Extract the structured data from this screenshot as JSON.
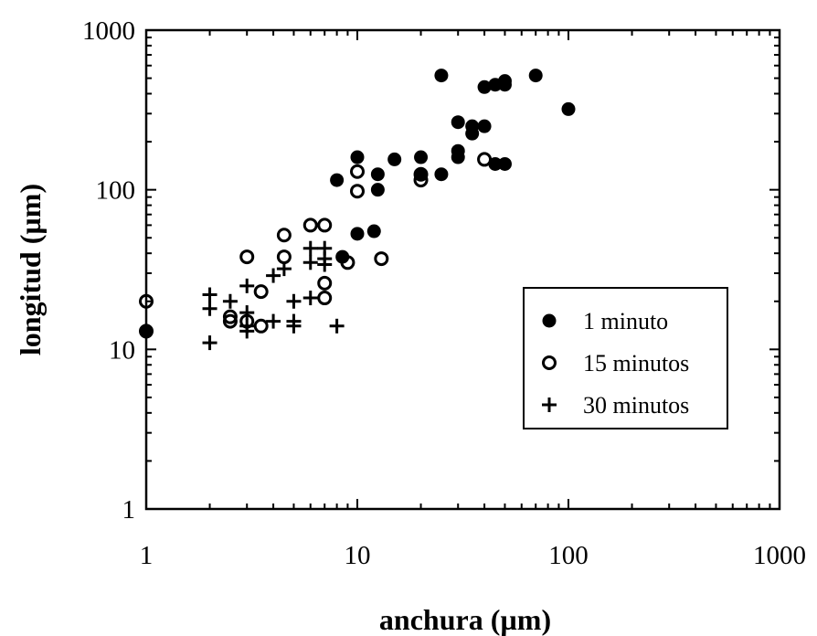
{
  "chart_data": {
    "type": "scatter",
    "xlabel": "anchura (µm)",
    "ylabel": "longitud (µm)",
    "x_scale": "log",
    "y_scale": "log",
    "xlim": [
      1,
      1000
    ],
    "ylim": [
      1,
      1000
    ],
    "x_ticks": [
      "1",
      "10",
      "100",
      "1000"
    ],
    "y_ticks": [
      "1",
      "10",
      "100",
      "1000"
    ],
    "grid": false,
    "legend_position": "inside-right",
    "series": [
      {
        "name": "1 minuto",
        "marker": "filled-circle",
        "points": [
          [
            1,
            13
          ],
          [
            8,
            115
          ],
          [
            8.5,
            38
          ],
          [
            10,
            160
          ],
          [
            10,
            53
          ],
          [
            12,
            55
          ],
          [
            12.5,
            125
          ],
          [
            12.5,
            100
          ],
          [
            15,
            155
          ],
          [
            20,
            160
          ],
          [
            20,
            125
          ],
          [
            25,
            520
          ],
          [
            25,
            125
          ],
          [
            30,
            265
          ],
          [
            30,
            175
          ],
          [
            30,
            160
          ],
          [
            35,
            250
          ],
          [
            35,
            225
          ],
          [
            40,
            440
          ],
          [
            40,
            250
          ],
          [
            45,
            455
          ],
          [
            45,
            145
          ],
          [
            50,
            480
          ],
          [
            50,
            455
          ],
          [
            50,
            145
          ],
          [
            70,
            520
          ],
          [
            100,
            320
          ]
        ]
      },
      {
        "name": "15 minutos",
        "marker": "open-circle",
        "points": [
          [
            1,
            20
          ],
          [
            1,
            13
          ],
          [
            2.5,
            16
          ],
          [
            2.5,
            15
          ],
          [
            3,
            38
          ],
          [
            3,
            15
          ],
          [
            3.5,
            14
          ],
          [
            3.5,
            23
          ],
          [
            4.5,
            38
          ],
          [
            4.5,
            52
          ],
          [
            6,
            60
          ],
          [
            7,
            60
          ],
          [
            7,
            26
          ],
          [
            7,
            21
          ],
          [
            9,
            35
          ],
          [
            10,
            130
          ],
          [
            10,
            98
          ],
          [
            13,
            37
          ],
          [
            20,
            115
          ],
          [
            20,
            125
          ],
          [
            40,
            155
          ]
        ]
      },
      {
        "name": "30 minutos",
        "marker": "plus",
        "points": [
          [
            2,
            22
          ],
          [
            2,
            18
          ],
          [
            2,
            11
          ],
          [
            2.5,
            20
          ],
          [
            3,
            25
          ],
          [
            3,
            17
          ],
          [
            3,
            14
          ],
          [
            3,
            13
          ],
          [
            4,
            15
          ],
          [
            4,
            29
          ],
          [
            4.5,
            32
          ],
          [
            5,
            20
          ],
          [
            5,
            15
          ],
          [
            5,
            14
          ],
          [
            6,
            21
          ],
          [
            6,
            43
          ],
          [
            6,
            35
          ],
          [
            7,
            43
          ],
          [
            7,
            37
          ],
          [
            7,
            34
          ],
          [
            8,
            14
          ]
        ]
      }
    ]
  }
}
